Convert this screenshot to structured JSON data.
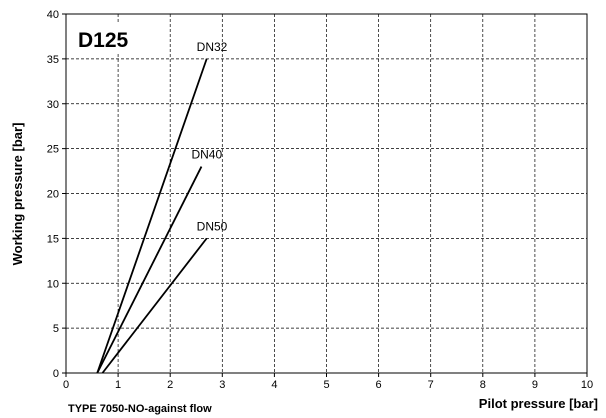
{
  "chart_data": {
    "type": "line",
    "title": "D125",
    "subtitle": "TYPE 7050-NO-against flow",
    "x_label": "Pilot pressure [bar]",
    "y_label": "Working pressure [bar]",
    "series": [
      {
        "name": "DN32",
        "color": "#000000",
        "x": [
          0.6,
          2.7
        ],
        "values": [
          0,
          35
        ]
      },
      {
        "name": "DN40",
        "color": "#000000",
        "x": [
          0.6,
          2.6
        ],
        "values": [
          0,
          23
        ]
      },
      {
        "name": "DN50",
        "color": "#000000",
        "x": [
          0.7,
          2.7
        ],
        "values": [
          0,
          15
        ]
      }
    ],
    "xlim": [
      0,
      10
    ],
    "xticks": [
      0,
      1,
      2,
      3,
      4,
      5,
      6,
      7,
      8,
      9,
      10
    ],
    "ylim": [
      0,
      40
    ],
    "yticks": [
      0,
      5,
      10,
      15,
      20,
      25,
      30,
      35,
      40
    ],
    "grid": true
  }
}
